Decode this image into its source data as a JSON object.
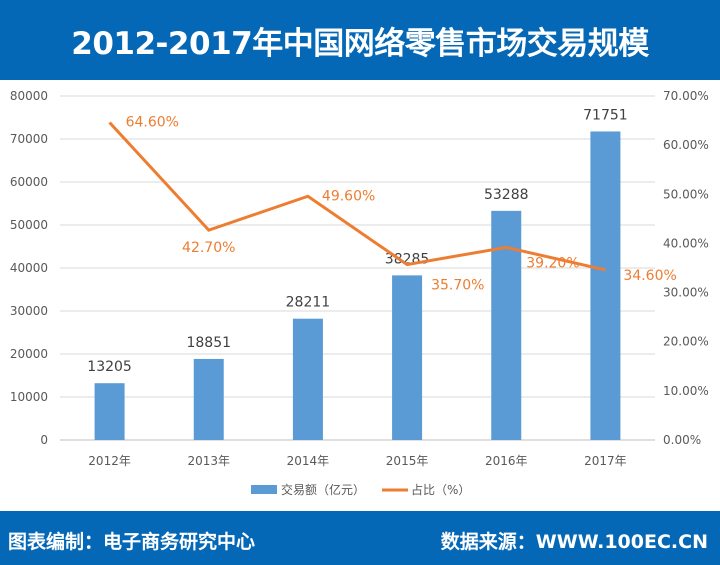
{
  "header": {
    "title": "2012-2017年中国网络零售市场交易规模"
  },
  "footer": {
    "left": "图表编制：电子商务研究中心",
    "right": "数据来源：WWW.100EC.CN"
  },
  "colors": {
    "bar": "#5b9bd5",
    "line": "#ed7d31",
    "banner": "#0568b6"
  },
  "chart_data": {
    "type": "bar+line",
    "title": "2012-2017年中国网络零售市场交易规模",
    "categories": [
      "2012年",
      "2013年",
      "2014年",
      "2015年",
      "2016年",
      "2017年"
    ],
    "series": [
      {
        "name": "交易额（亿元）",
        "type": "bar",
        "axis": "left",
        "values": [
          13205,
          18851,
          28211,
          38285,
          53288,
          71751
        ],
        "labels": [
          "13205",
          "18851",
          "28211",
          "38285",
          "53288",
          "71751"
        ]
      },
      {
        "name": "占比（%）",
        "type": "line",
        "axis": "right",
        "values": [
          64.6,
          42.7,
          49.6,
          35.7,
          39.2,
          34.6
        ],
        "labels": [
          "64.60%",
          "42.70%",
          "49.60%",
          "35.70%",
          "39.20%",
          "34.60%"
        ]
      }
    ],
    "ylim": [
      0,
      80000
    ],
    "y2lim": [
      0,
      70
    ],
    "yticks": [
      "0",
      "10000",
      "20000",
      "30000",
      "40000",
      "50000",
      "60000",
      "70000",
      "80000"
    ],
    "y2ticks": [
      "0.00%",
      "10.00%",
      "20.00%",
      "30.00%",
      "40.00%",
      "50.00%",
      "60.00%",
      "70.00%"
    ],
    "grid": true,
    "legend": "bottom",
    "legend_labels": [
      "交易额（亿元）",
      "占比（%）"
    ]
  }
}
